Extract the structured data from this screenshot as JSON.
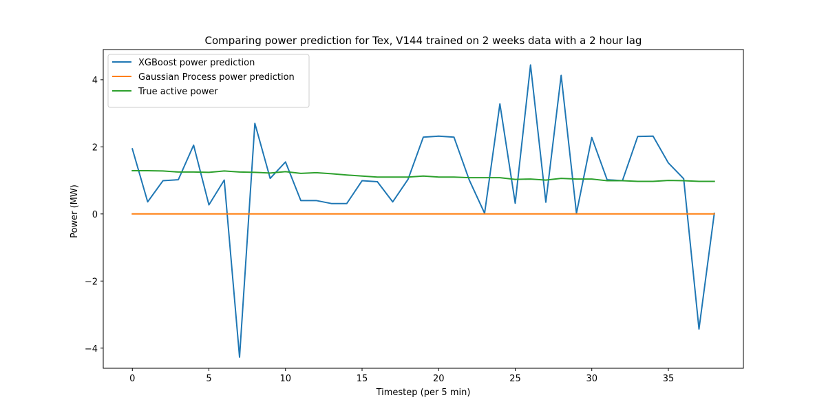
{
  "chart_data": {
    "type": "line",
    "title": "Comparing power prediction for Tex, V144 trained on 2 weeks data with a 2 hour lag",
    "xlabel": "Timestep (per 5 min)",
    "ylabel": "Power (MW)",
    "xlim": [
      -1.9,
      39.9
    ],
    "ylim": [
      -4.6,
      4.9
    ],
    "xticks": [
      0,
      5,
      10,
      15,
      20,
      25,
      30,
      35
    ],
    "yticks": [
      -4,
      -2,
      0,
      2,
      4
    ],
    "ytick_labels": [
      "−4",
      "−2",
      "0",
      "2",
      "4"
    ],
    "grid": false,
    "legend_position": "upper-left",
    "x": [
      0,
      1,
      2,
      3,
      4,
      5,
      6,
      7,
      8,
      9,
      10,
      11,
      12,
      13,
      14,
      15,
      16,
      17,
      18,
      19,
      20,
      21,
      22,
      23,
      24,
      25,
      26,
      27,
      28,
      29,
      30,
      31,
      32,
      33,
      34,
      35,
      36,
      37,
      38
    ],
    "series": [
      {
        "name": "XGBoost power prediction",
        "color": "#1f77b4",
        "values": [
          1.94,
          0.36,
          0.99,
          1.02,
          2.05,
          0.27,
          1.01,
          -4.27,
          2.7,
          1.06,
          1.55,
          0.4,
          0.4,
          0.31,
          0.31,
          0.99,
          0.96,
          0.36,
          1.03,
          2.29,
          2.32,
          2.29,
          1.01,
          0.02,
          3.28,
          0.32,
          4.44,
          0.35,
          4.13,
          0.02,
          2.28,
          1.02,
          0.99,
          2.31,
          2.32,
          1.52,
          1.05,
          -3.43,
          0.02
        ]
      },
      {
        "name": "Gaussian Process power prediction",
        "color": "#ff7f0e",
        "values": [
          0,
          0,
          0,
          0,
          0,
          0,
          0,
          0,
          0,
          0,
          0,
          0,
          0,
          0,
          0,
          0,
          0,
          0,
          0,
          0,
          0,
          0,
          0,
          0,
          0,
          0,
          0,
          0,
          0,
          0,
          0,
          0,
          0,
          0,
          0,
          0,
          0,
          0,
          0
        ]
      },
      {
        "name": "True active power",
        "color": "#2ca02c",
        "values": [
          1.29,
          1.29,
          1.28,
          1.25,
          1.25,
          1.24,
          1.28,
          1.25,
          1.24,
          1.22,
          1.26,
          1.21,
          1.23,
          1.2,
          1.16,
          1.13,
          1.1,
          1.1,
          1.1,
          1.13,
          1.1,
          1.1,
          1.08,
          1.08,
          1.08,
          1.03,
          1.04,
          1.01,
          1.06,
          1.04,
          1.04,
          0.99,
          0.99,
          0.97,
          0.97,
          1.0,
          0.99,
          0.97,
          0.97
        ]
      }
    ]
  }
}
